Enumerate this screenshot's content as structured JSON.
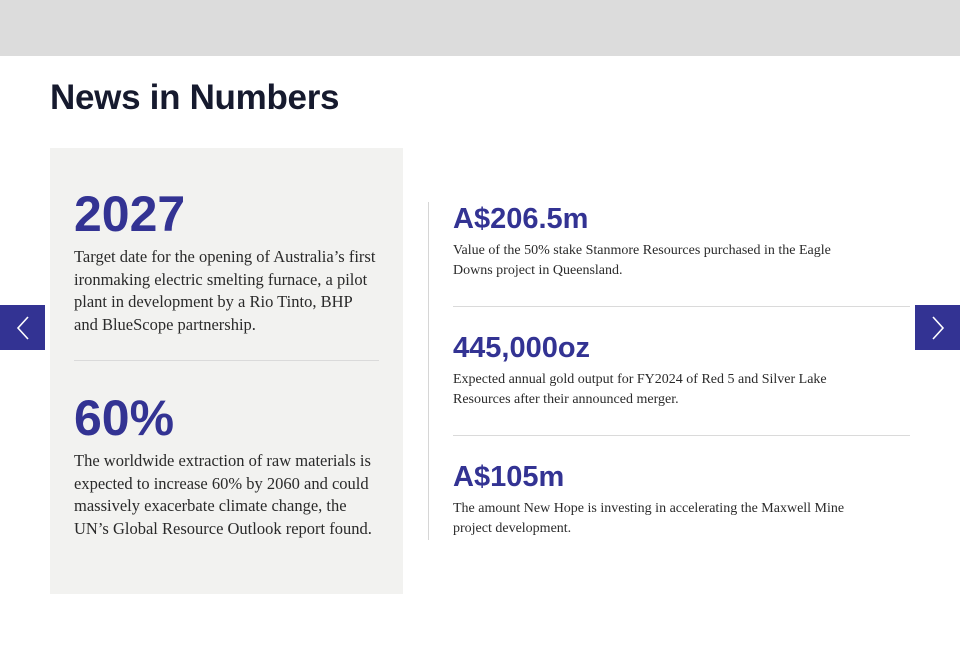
{
  "header": {
    "title": "News in Numbers"
  },
  "featured": [
    {
      "value": "2027",
      "description": "Target date for the opening of Australia’s first ironmaking electric smelting furnace, a pilot plant in development by a Rio Tinto, BHP and BlueScope partnership."
    },
    {
      "value": "60%",
      "description": "The worldwide extraction of raw materials is expected to increase 60% by 2060 and could massively exacerbate climate change, the UN’s Global Resource Outlook report found."
    }
  ],
  "list": [
    {
      "value": "A$206.5m",
      "description": "Value of the 50% stake Stanmore Resources purchased in the Eagle Downs project in Queensland."
    },
    {
      "value": "445,000oz",
      "description": "Expected annual gold output for FY2024 of Red 5 and Silver Lake Resources after their announced merger."
    },
    {
      "value": "A$105m",
      "description": "The amount New Hope is investing in accelerating the Maxwell Mine project development."
    }
  ],
  "navigation": {
    "prev_icon": "chevron-left-icon",
    "next_icon": "chevron-right-icon"
  },
  "colors": {
    "accent": "#333393",
    "top_bar": "#dcdcdc",
    "card_background": "#f2f2f0"
  }
}
